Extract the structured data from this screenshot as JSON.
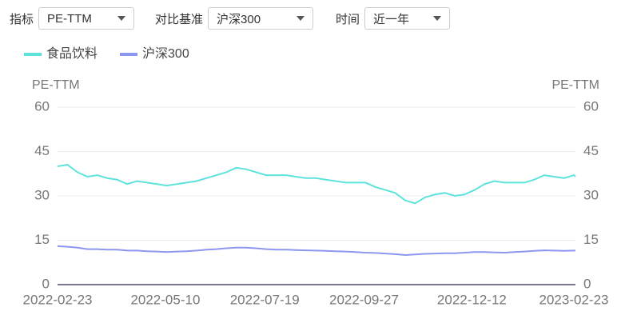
{
  "controls": [
    {
      "label": "指标",
      "value": "PE-TTM"
    },
    {
      "label": "对比基准",
      "value": "沪深300"
    },
    {
      "label": "时间",
      "value": "近一年"
    }
  ],
  "chart_data": {
    "type": "line",
    "y_label": "PE-TTM",
    "y2_label": "PE-TTM",
    "x": [
      "2022-02-23",
      "2022-03-02",
      "2022-03-09",
      "2022-03-16",
      "2022-03-23",
      "2022-03-30",
      "2022-04-06",
      "2022-04-13",
      "2022-04-20",
      "2022-04-27",
      "2022-05-04",
      "2022-05-11",
      "2022-05-18",
      "2022-05-25",
      "2022-06-01",
      "2022-06-08",
      "2022-06-15",
      "2022-06-22",
      "2022-06-29",
      "2022-07-06",
      "2022-07-13",
      "2022-07-20",
      "2022-07-27",
      "2022-08-03",
      "2022-08-10",
      "2022-08-17",
      "2022-08-24",
      "2022-08-31",
      "2022-09-07",
      "2022-09-14",
      "2022-09-21",
      "2022-09-28",
      "2022-10-05",
      "2022-10-12",
      "2022-10-19",
      "2022-10-26",
      "2022-11-02",
      "2022-11-09",
      "2022-11-16",
      "2022-11-23",
      "2022-11-30",
      "2022-12-07",
      "2022-12-14",
      "2022-12-21",
      "2022-12-28",
      "2023-01-04",
      "2023-01-11",
      "2023-01-18",
      "2023-01-25",
      "2023-02-01",
      "2023-02-08",
      "2023-02-15",
      "2023-02-22",
      "2023-02-23"
    ],
    "series": [
      {
        "name": "食品饮料",
        "color": "#5ee3dc",
        "values": [
          40,
          40.5,
          38,
          36.5,
          37,
          36,
          35.5,
          34,
          35,
          34.5,
          34,
          33.5,
          34,
          34.5,
          35,
          36,
          37,
          38,
          39.5,
          39,
          38,
          37,
          37,
          37,
          36.5,
          36,
          36,
          35.5,
          35,
          34.5,
          34.5,
          34.5,
          33,
          32,
          31,
          28.5,
          27.5,
          29.5,
          30.5,
          31,
          30,
          30.5,
          32,
          34,
          35,
          34.5,
          34.5,
          34.5,
          35.5,
          37,
          36.5,
          36,
          37,
          36.5
        ]
      },
      {
        "name": "沪深300",
        "color": "#8c97f0",
        "values": [
          13,
          12.8,
          12.5,
          12,
          12,
          11.8,
          11.8,
          11.5,
          11.5,
          11.3,
          11.2,
          11,
          11.2,
          11.3,
          11.5,
          11.8,
          12,
          12.3,
          12.5,
          12.5,
          12.3,
          12,
          11.8,
          11.8,
          11.7,
          11.6,
          11.5,
          11.4,
          11.3,
          11.2,
          11,
          10.8,
          10.7,
          10.5,
          10.3,
          10,
          10.2,
          10.4,
          10.5,
          10.6,
          10.6,
          10.8,
          11,
          11,
          10.9,
          10.8,
          11,
          11.2,
          11.4,
          11.6,
          11.5,
          11.4,
          11.5,
          11.5
        ]
      }
    ],
    "xticks": [
      "2022-02-23",
      "2022-05-10",
      "2022-07-19",
      "2022-09-27",
      "2022-12-12",
      "2023-02-23"
    ],
    "ylim": [
      0,
      60
    ],
    "yticks": [
      0,
      15,
      30,
      45,
      60
    ],
    "y2lim": [
      0,
      60
    ],
    "y2ticks": [
      0,
      15,
      30,
      45,
      60
    ],
    "grid": true
  }
}
